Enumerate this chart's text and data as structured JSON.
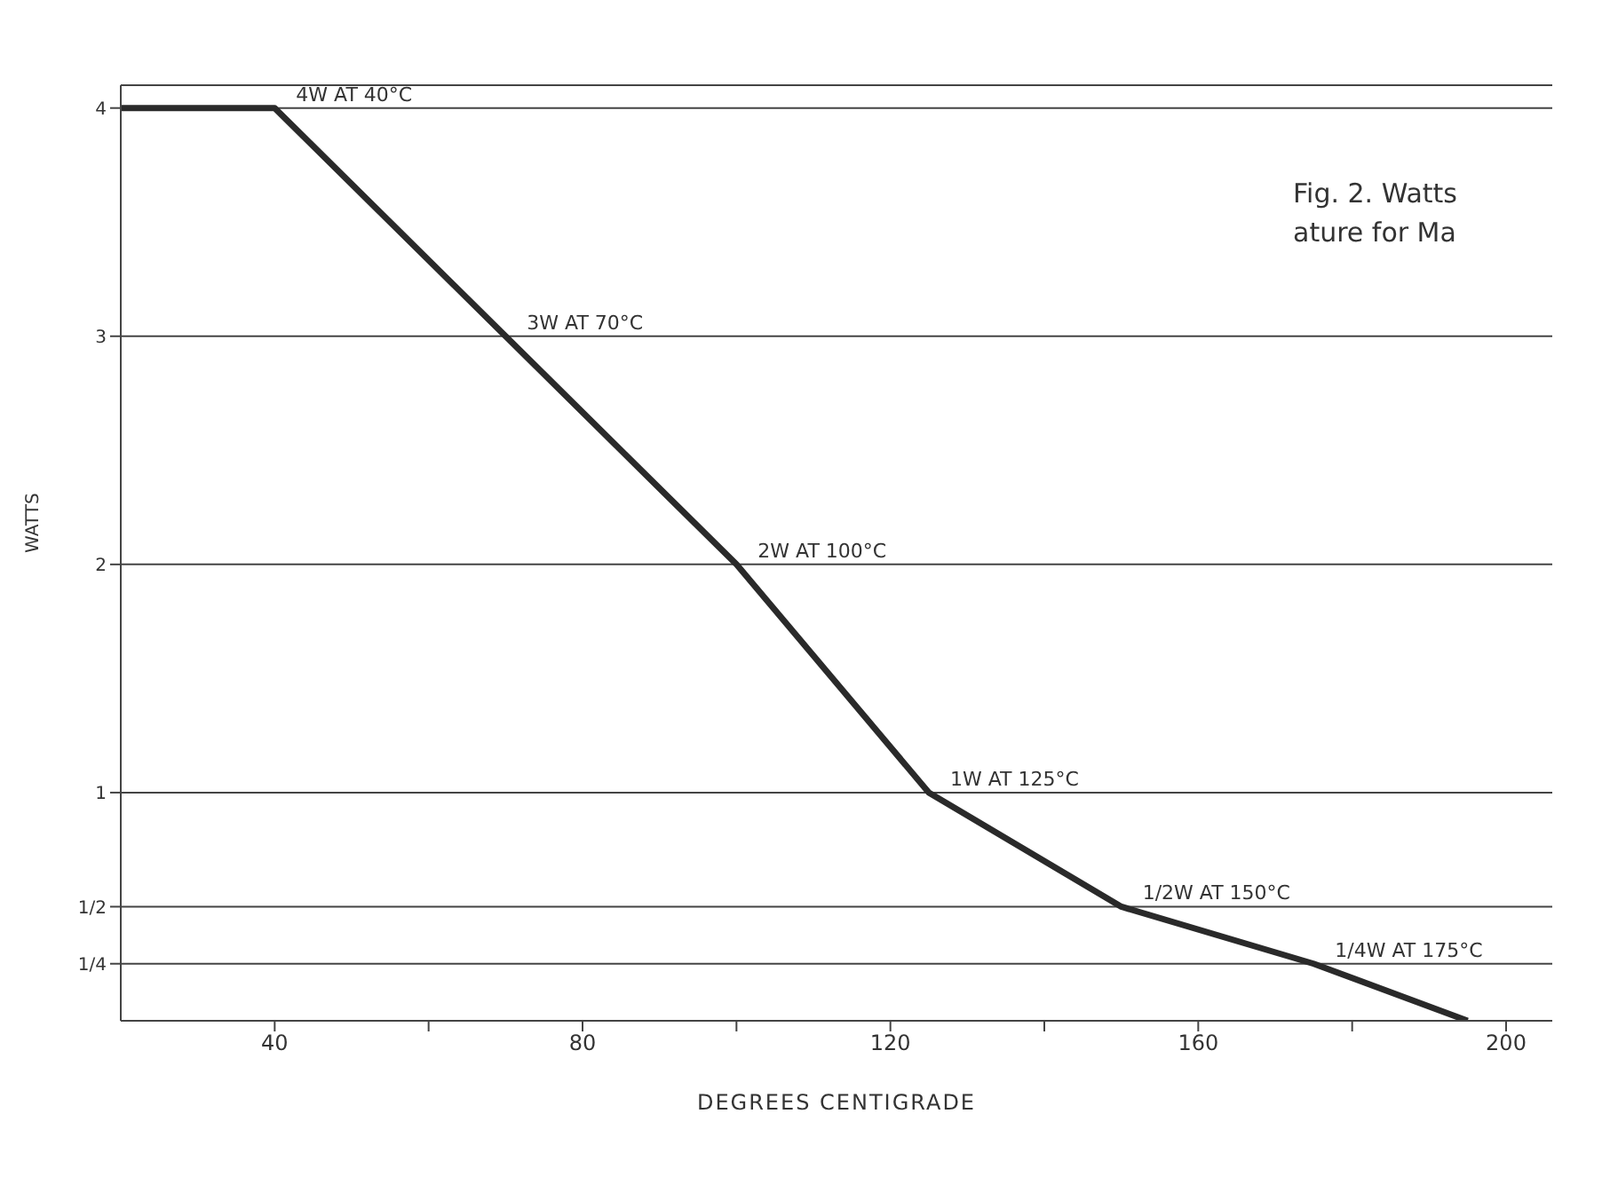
{
  "chart_data": {
    "type": "line",
    "xlabel": "DEGREES CENTIGRADE",
    "ylabel": "WATTS",
    "annotations": [
      "Fig. 2. Watts",
      "ature for Ma",
      {
        "text": "4W AT 40°C",
        "x": 40,
        "y": 4
      },
      {
        "text": "3W AT 70°C",
        "x": 70,
        "y": 3
      },
      {
        "text": "2W AT 100°C",
        "x": 100,
        "y": 2
      },
      {
        "text": "1W AT 125°C",
        "x": 125,
        "y": 1
      },
      {
        "text": "1/2W AT 150°C",
        "x": 150,
        "y": 0.5
      },
      {
        "text": "1/4W AT 175°C",
        "x": 175,
        "y": 0.25
      }
    ],
    "x": [
      20,
      40,
      70,
      100,
      125,
      150,
      175,
      195
    ],
    "series": [
      {
        "color": "#2a2a2a",
        "values": [
          4,
          4,
          3,
          2,
          1,
          0.5,
          0.25,
          0
        ]
      }
    ],
    "xlim": [
      20,
      206
    ],
    "xticks": [
      40,
      {
        "value": 60,
        "label": null
      },
      80,
      {
        "value": 100,
        "label": null
      },
      120,
      {
        "value": 140,
        "label": null
      },
      160,
      {
        "value": 180,
        "label": null
      },
      200
    ],
    "ylim": [
      0,
      4.1
    ],
    "yticks": [
      {
        "value": 0.25,
        "label": "1/4"
      },
      {
        "value": 0.5,
        "label": "1/2"
      },
      1,
      2,
      3,
      4
    ],
    "grid": "y",
    "marker": "none",
    "line_style": "solid"
  }
}
